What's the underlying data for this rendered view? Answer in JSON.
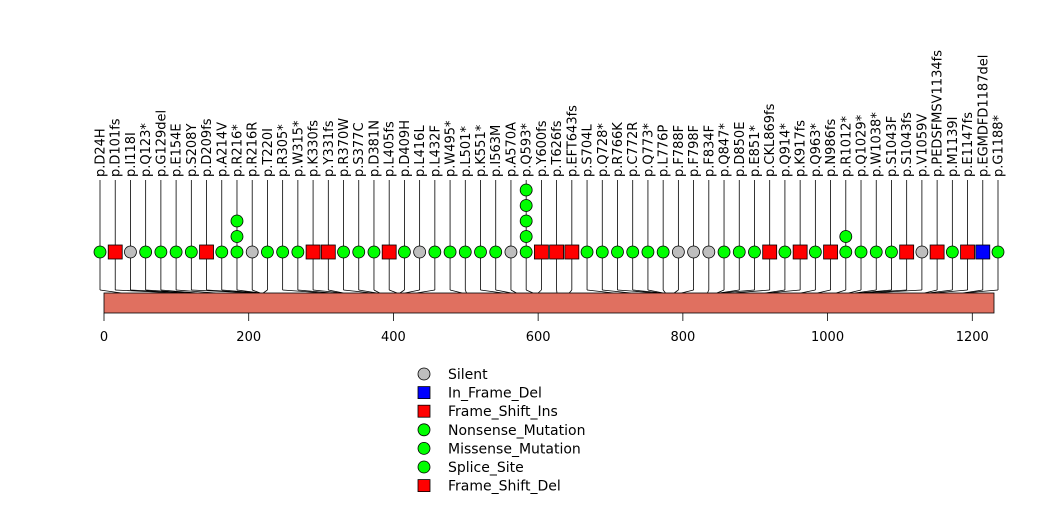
{
  "colors": {
    "protein_bar": "#E07060",
    "silent": "#BEBEBE",
    "in_frame_del": "#0000FF",
    "frame_shift": "#FF0000",
    "green": "#00FF00",
    "line": "#000000"
  },
  "chart_data": {
    "type": "lollipop",
    "protein_length": 1230,
    "xlim": [
      0,
      1230
    ],
    "x_ticks": [
      0,
      200,
      400,
      600,
      800,
      1000,
      1200
    ],
    "mutations": [
      {
        "label": "p.D24H",
        "pos": 24,
        "type": "Missense_Mutation",
        "count": 1
      },
      {
        "label": "p.D101fs",
        "pos": 101,
        "type": "Frame_Shift_Del",
        "count": 1
      },
      {
        "label": "p.I118I",
        "pos": 118,
        "type": "Silent",
        "count": 1
      },
      {
        "label": "p.Q123*",
        "pos": 123,
        "type": "Nonsense_Mutation",
        "count": 1
      },
      {
        "label": "p.G129del",
        "pos": 129,
        "type": "Missense_Mutation",
        "count": 1
      },
      {
        "label": "p.E154E",
        "pos": 154,
        "type": "Missense_Mutation",
        "count": 1
      },
      {
        "label": "p.S208Y",
        "pos": 208,
        "type": "Missense_Mutation",
        "count": 1
      },
      {
        "label": "p.D209fs",
        "pos": 209,
        "type": "Frame_Shift_Del",
        "count": 1
      },
      {
        "label": "p.A214V",
        "pos": 214,
        "type": "Missense_Mutation",
        "count": 1
      },
      {
        "label": "p.R216*",
        "pos": 216,
        "type": "Nonsense_Mutation",
        "count": 3
      },
      {
        "label": "p.R216R",
        "pos": 216,
        "type": "Silent",
        "count": 1
      },
      {
        "label": "p.T220I",
        "pos": 220,
        "type": "Missense_Mutation",
        "count": 1
      },
      {
        "label": "p.R305*",
        "pos": 305,
        "type": "Nonsense_Mutation",
        "count": 1
      },
      {
        "label": "p.W315*",
        "pos": 315,
        "type": "Nonsense_Mutation",
        "count": 1
      },
      {
        "label": "p.K330fs",
        "pos": 330,
        "type": "Frame_Shift_Del",
        "count": 1
      },
      {
        "label": "p.Y331fs",
        "pos": 331,
        "type": "Frame_Shift_Del",
        "count": 1
      },
      {
        "label": "p.R370W",
        "pos": 370,
        "type": "Missense_Mutation",
        "count": 1
      },
      {
        "label": "p.S377C",
        "pos": 377,
        "type": "Missense_Mutation",
        "count": 1
      },
      {
        "label": "p.D381N",
        "pos": 381,
        "type": "Missense_Mutation",
        "count": 1
      },
      {
        "label": "p.L405fs",
        "pos": 405,
        "type": "Frame_Shift_Del",
        "count": 1
      },
      {
        "label": "p.D409H",
        "pos": 409,
        "type": "Missense_Mutation",
        "count": 1
      },
      {
        "label": "p.L416L",
        "pos": 416,
        "type": "Silent",
        "count": 1
      },
      {
        "label": "p.L432F",
        "pos": 432,
        "type": "Missense_Mutation",
        "count": 1
      },
      {
        "label": "p.W495*",
        "pos": 495,
        "type": "Nonsense_Mutation",
        "count": 1
      },
      {
        "label": "p.L501*",
        "pos": 501,
        "type": "Nonsense_Mutation",
        "count": 1
      },
      {
        "label": "p.K551*",
        "pos": 551,
        "type": "Nonsense_Mutation",
        "count": 1
      },
      {
        "label": "p.I563M",
        "pos": 563,
        "type": "Missense_Mutation",
        "count": 1
      },
      {
        "label": "p.A570A",
        "pos": 570,
        "type": "Silent",
        "count": 1
      },
      {
        "label": "p.Q593*",
        "pos": 593,
        "type": "Nonsense_Mutation",
        "count": 5
      },
      {
        "label": "p.Y600fs",
        "pos": 600,
        "type": "Frame_Shift_Del",
        "count": 1
      },
      {
        "label": "p.T626fs",
        "pos": 626,
        "type": "Frame_Shift_Del",
        "count": 1
      },
      {
        "label": "p.EFT643fs",
        "pos": 643,
        "type": "Frame_Shift_Del",
        "count": 1
      },
      {
        "label": "p.S704L",
        "pos": 704,
        "type": "Missense_Mutation",
        "count": 1
      },
      {
        "label": "p.Q728*",
        "pos": 728,
        "type": "Nonsense_Mutation",
        "count": 1
      },
      {
        "label": "p.R766K",
        "pos": 766,
        "type": "Missense_Mutation",
        "count": 1
      },
      {
        "label": "p.C772R",
        "pos": 772,
        "type": "Missense_Mutation",
        "count": 1
      },
      {
        "label": "p.Q773*",
        "pos": 773,
        "type": "Nonsense_Mutation",
        "count": 1
      },
      {
        "label": "p.L776P",
        "pos": 776,
        "type": "Missense_Mutation",
        "count": 1
      },
      {
        "label": "p.F788F",
        "pos": 788,
        "type": "Silent",
        "count": 1
      },
      {
        "label": "p.F798F",
        "pos": 798,
        "type": "Silent",
        "count": 1
      },
      {
        "label": "p.F834F",
        "pos": 834,
        "type": "Silent",
        "count": 1
      },
      {
        "label": "p.Q847*",
        "pos": 847,
        "type": "Nonsense_Mutation",
        "count": 1
      },
      {
        "label": "p.D850E",
        "pos": 850,
        "type": "Missense_Mutation",
        "count": 1
      },
      {
        "label": "p.E851*",
        "pos": 851,
        "type": "Nonsense_Mutation",
        "count": 1
      },
      {
        "label": "p.CKL869fs",
        "pos": 869,
        "type": "Frame_Shift_Del",
        "count": 1
      },
      {
        "label": "p.Q914*",
        "pos": 914,
        "type": "Nonsense_Mutation",
        "count": 1
      },
      {
        "label": "p.K917fs",
        "pos": 917,
        "type": "Frame_Shift_Del",
        "count": 1
      },
      {
        "label": "p.Q963*",
        "pos": 963,
        "type": "Nonsense_Mutation",
        "count": 1
      },
      {
        "label": "p.N986fs",
        "pos": 986,
        "type": "Frame_Shift_Del",
        "count": 1
      },
      {
        "label": "p.R1012*",
        "pos": 1012,
        "type": "Nonsense_Mutation",
        "count": 2
      },
      {
        "label": "p.Q1029*",
        "pos": 1029,
        "type": "Nonsense_Mutation",
        "count": 1
      },
      {
        "label": "p.W1038*",
        "pos": 1038,
        "type": "Nonsense_Mutation",
        "count": 1
      },
      {
        "label": "p.S1043F",
        "pos": 1043,
        "type": "Missense_Mutation",
        "count": 1
      },
      {
        "label": "p.S1043fs",
        "pos": 1043,
        "type": "Frame_Shift_Del",
        "count": 1
      },
      {
        "label": "p.V1059V",
        "pos": 1059,
        "type": "Silent",
        "count": 1
      },
      {
        "label": "p.PEDSFMSV1134fs",
        "pos": 1134,
        "type": "Frame_Shift_Del",
        "count": 1
      },
      {
        "label": "p.M1139I",
        "pos": 1139,
        "type": "Missense_Mutation",
        "count": 1
      },
      {
        "label": "p.E1147fs",
        "pos": 1147,
        "type": "Frame_Shift_Del",
        "count": 1
      },
      {
        "label": "p.EGMDFD1187del",
        "pos": 1187,
        "type": "In_Frame_Del",
        "count": 1
      },
      {
        "label": "p.G1188*",
        "pos": 1188,
        "type": "Nonsense_Mutation",
        "count": 1
      }
    ],
    "legend": [
      {
        "label": "Silent",
        "shape": "circle",
        "color": "#BEBEBE"
      },
      {
        "label": "In_Frame_Del",
        "shape": "square",
        "color": "#0000FF"
      },
      {
        "label": "Frame_Shift_Ins",
        "shape": "square",
        "color": "#FF0000"
      },
      {
        "label": "Nonsense_Mutation",
        "shape": "circle",
        "color": "#00FF00"
      },
      {
        "label": "Missense_Mutation",
        "shape": "circle",
        "color": "#00FF00"
      },
      {
        "label": "Splice_Site",
        "shape": "circle",
        "color": "#00FF00"
      },
      {
        "label": "Frame_Shift_Del",
        "shape": "square",
        "color": "#FF0000"
      }
    ]
  }
}
